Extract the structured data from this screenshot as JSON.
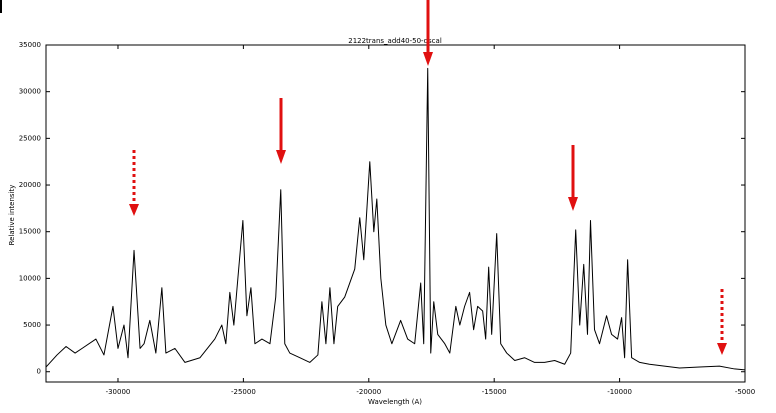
{
  "chart_data": {
    "type": "line",
    "title": "2122trans_add40-50-dscal",
    "x_label": "Wavelength (A)",
    "y_label": "Relative intensity",
    "xlim": [
      -32870,
      -5000
    ],
    "ylim": [
      -1100,
      35000
    ],
    "xticks": [
      -30000,
      -25000,
      -20000,
      -15000,
      -10000,
      -5000
    ],
    "yticks": [
      0,
      5000,
      10000,
      15000,
      20000,
      25000,
      30000,
      35000
    ],
    "color": "#000000",
    "x": [
      -32870,
      -32430,
      -32070,
      -31710,
      -31430,
      -30880,
      -30560,
      -30200,
      -30000,
      -29760,
      -29600,
      -29360,
      -29120,
      -28960,
      -28730,
      -28490,
      -28250,
      -28090,
      -27730,
      -27330,
      -26730,
      -26140,
      -25860,
      -25700,
      -25540,
      -25380,
      -25220,
      -25020,
      -24860,
      -24700,
      -24540,
      -24260,
      -23940,
      -23710,
      -23510,
      -23350,
      -23150,
      -22750,
      -22350,
      -22030,
      -21870,
      -21710,
      -21550,
      -21390,
      -21240,
      -20960,
      -20760,
      -20560,
      -20360,
      -20200,
      -19960,
      -19800,
      -19680,
      -19520,
      -19320,
      -19080,
      -18730,
      -18450,
      -18170,
      -17930,
      -17810,
      -17650,
      -17530,
      -17410,
      -17250,
      -16970,
      -16770,
      -16530,
      -16370,
      -16180,
      -15980,
      -15820,
      -15660,
      -15460,
      -15340,
      -15220,
      -15100,
      -14900,
      -14740,
      -14500,
      -14180,
      -13790,
      -13390,
      -12990,
      -12590,
      -12190,
      -11950,
      -11750,
      -11590,
      -11430,
      -11280,
      -11160,
      -11000,
      -10800,
      -10520,
      -10320,
      -10080,
      -9920,
      -9800,
      -9680,
      -9520,
      -9200,
      -8810,
      -8210,
      -7610,
      -6810,
      -6020,
      -5420,
      -5000
    ],
    "values": [
      500,
      1800,
      2700,
      2000,
      2500,
      3500,
      1800,
      7000,
      2500,
      5000,
      1500,
      13000,
      2500,
      3000,
      5500,
      2000,
      9000,
      2000,
      2500,
      1000,
      1500,
      3500,
      5000,
      3000,
      8500,
      5000,
      10000,
      16200,
      6000,
      9000,
      3000,
      3500,
      3000,
      8000,
      19500,
      3000,
      2000,
      1500,
      1000,
      1800,
      7500,
      3000,
      9000,
      3000,
      7000,
      8000,
      9500,
      11000,
      16500,
      12000,
      22500,
      15000,
      18500,
      10000,
      5000,
      3000,
      5500,
      3500,
      3000,
      9500,
      3000,
      32500,
      2000,
      7500,
      4000,
      3000,
      2000,
      7000,
      5000,
      7000,
      8500,
      4500,
      7000,
      6500,
      3500,
      11200,
      4000,
      14800,
      3000,
      2000,
      1200,
      1500,
      1000,
      1000,
      1200,
      800,
      2000,
      15200,
      5000,
      11500,
      4000,
      16200,
      4500,
      3000,
      6000,
      4000,
      3500,
      5800,
      1500,
      12000,
      1500,
      1000,
      800,
      600,
      400,
      500,
      600,
      300,
      200
    ]
  }
}
